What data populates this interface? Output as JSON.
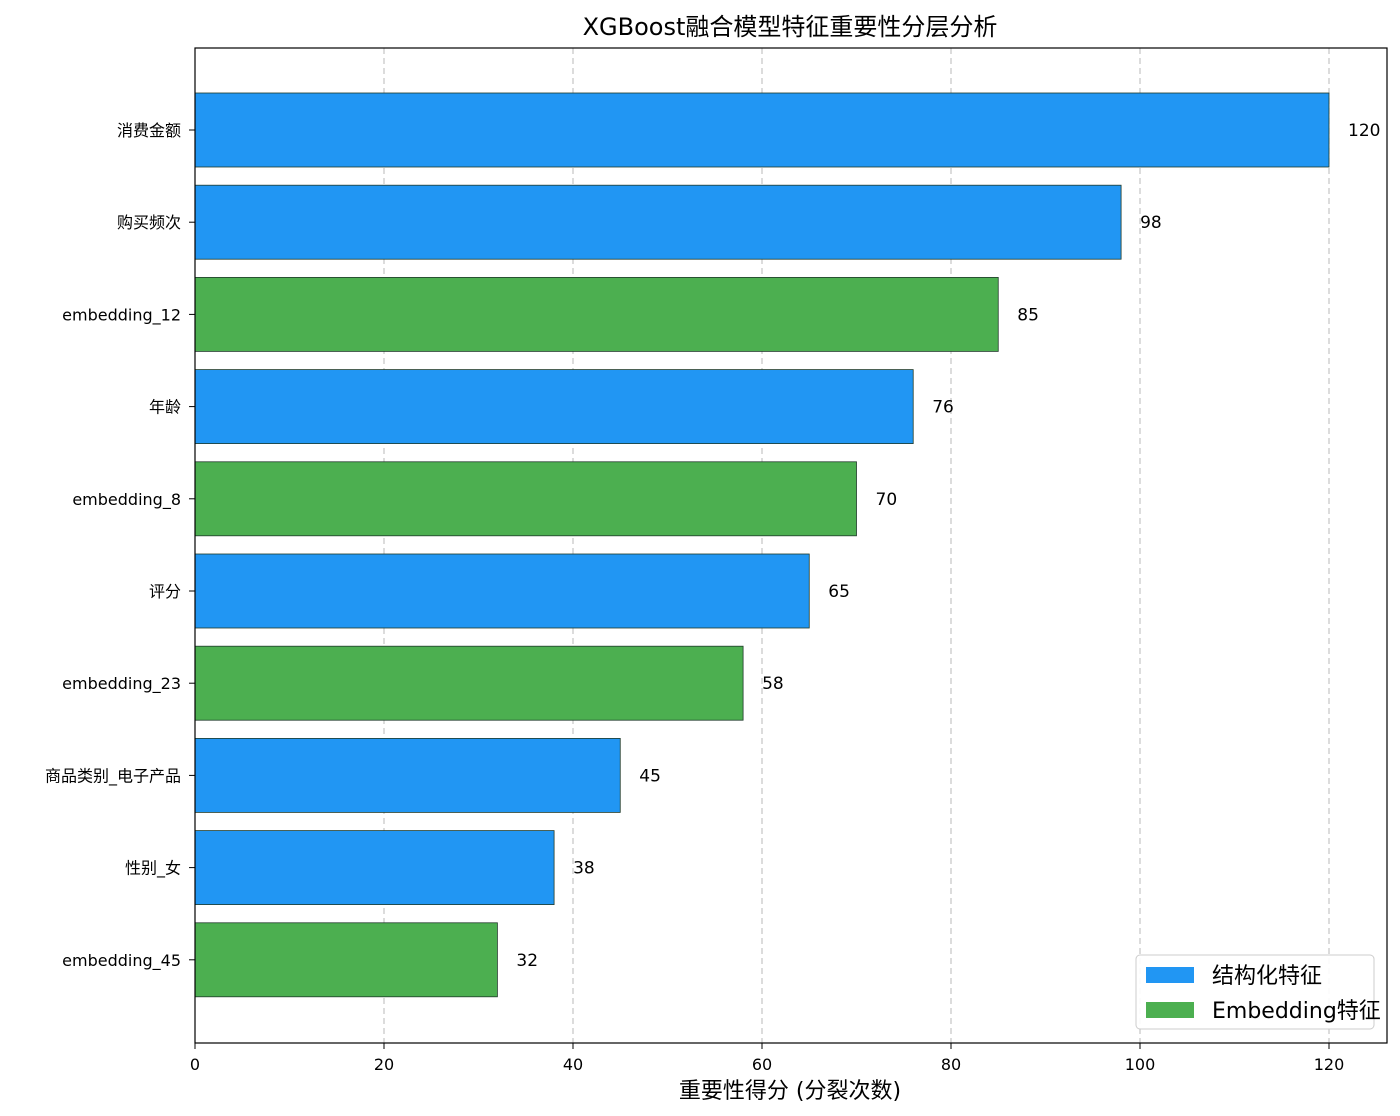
{
  "chart_data": {
    "type": "bar",
    "orientation": "horizontal",
    "title": "XGBoost融合模型特征重要性分层分析",
    "xlabel": "重要性得分 (分裂次数)",
    "ylabel": "",
    "xlim": [
      0,
      122.5
    ],
    "x_ticks": [
      0,
      20,
      40,
      60,
      80,
      100,
      120
    ],
    "grid": "vertical dashed",
    "legend_position": "bottom-right",
    "series_colors": {
      "structured": "#2196F3",
      "embedding": "#4CAF50"
    },
    "legend": [
      {
        "label": "结构化特征",
        "group": "structured"
      },
      {
        "label": "Embedding特征",
        "group": "embedding"
      }
    ],
    "bars": [
      {
        "category": "消费金额",
        "value": 120,
        "group": "structured"
      },
      {
        "category": "购买频次",
        "value": 98,
        "group": "structured"
      },
      {
        "category": "embedding_12",
        "value": 85,
        "group": "embedding"
      },
      {
        "category": "年龄",
        "value": 76,
        "group": "structured"
      },
      {
        "category": "embedding_8",
        "value": 70,
        "group": "embedding"
      },
      {
        "category": "评分",
        "value": 65,
        "group": "structured"
      },
      {
        "category": "embedding_23",
        "value": 58,
        "group": "embedding"
      },
      {
        "category": "商品类别_电子产品",
        "value": 45,
        "group": "structured"
      },
      {
        "category": "性别_女",
        "value": 38,
        "group": "structured"
      },
      {
        "category": "embedding_45",
        "value": 32,
        "group": "embedding"
      }
    ]
  }
}
